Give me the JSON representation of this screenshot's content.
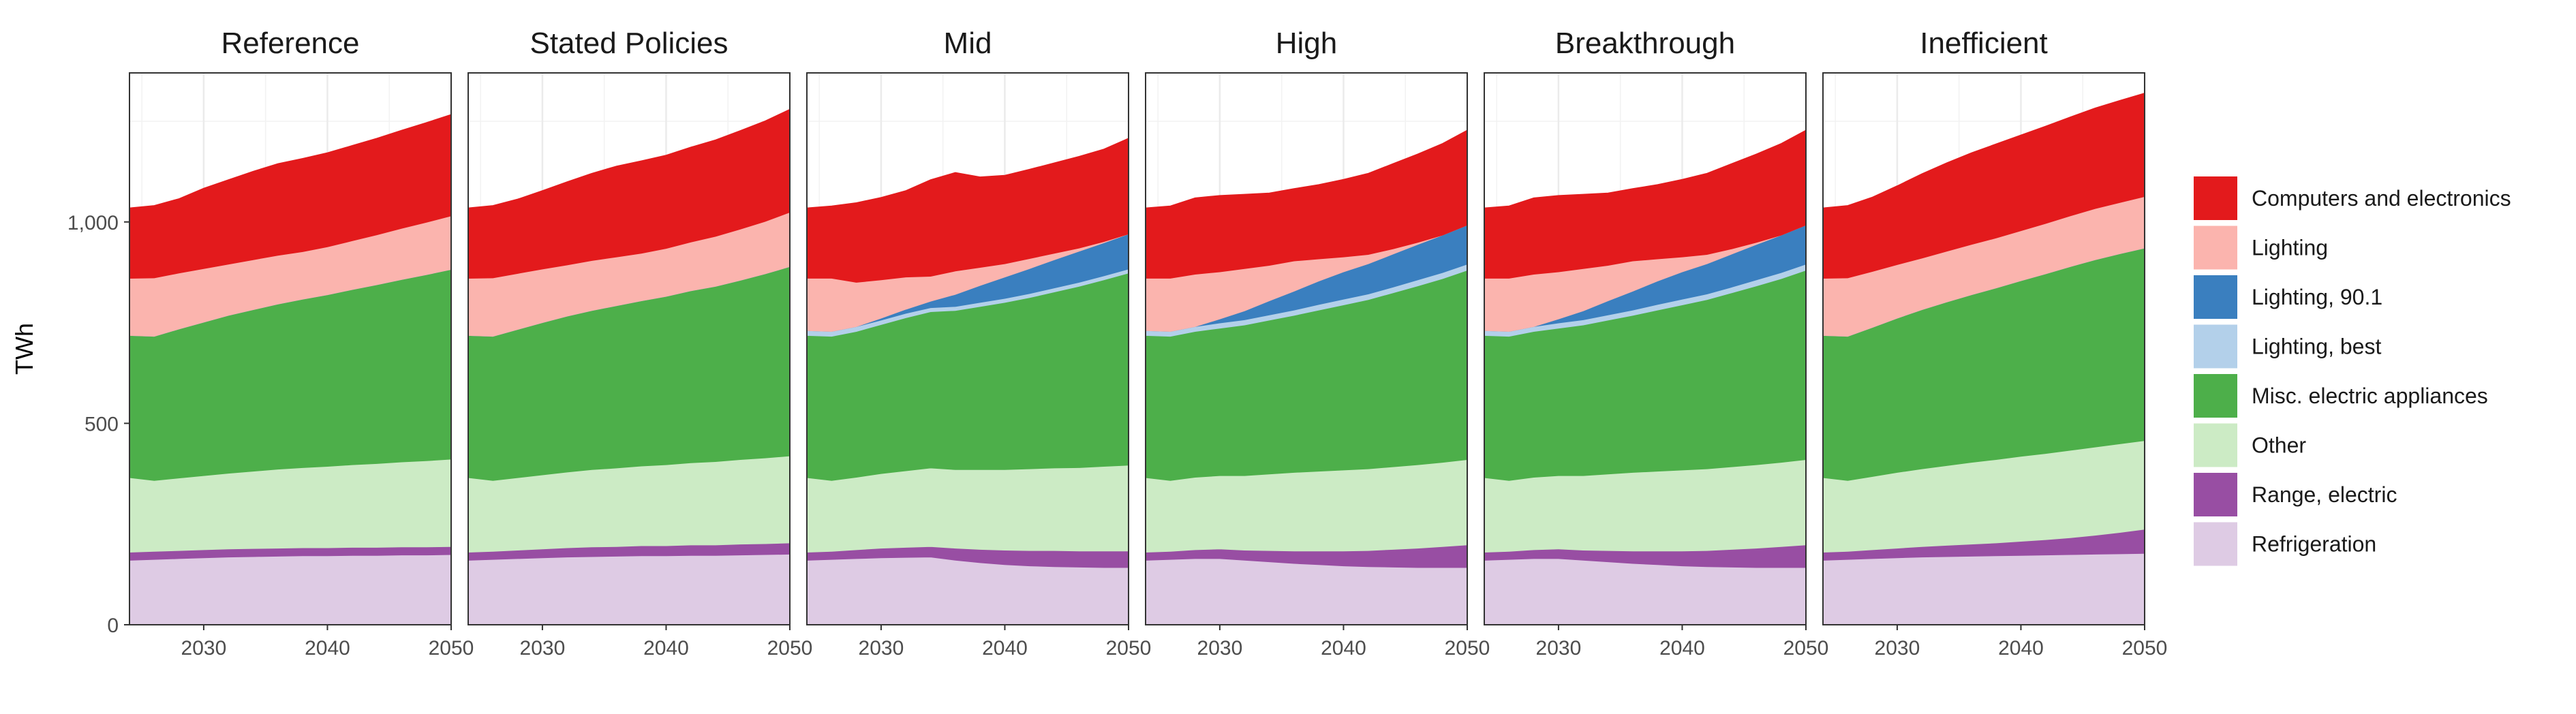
{
  "chart_data": {
    "type": "area",
    "stacked": true,
    "ylabel": "TWh",
    "xlabel": "",
    "x": [
      2024,
      2026,
      2028,
      2030,
      2032,
      2034,
      2036,
      2038,
      2040,
      2042,
      2044,
      2046,
      2048,
      2050
    ],
    "xticks": [
      "2030",
      "2040",
      "2050"
    ],
    "yticks": [
      "0",
      "500",
      "1,000"
    ],
    "ylim": [
      0,
      1370
    ],
    "grid": true,
    "legend_position": "right",
    "legend": [
      {
        "name": "Computers and electronics",
        "color": "#E31A1C"
      },
      {
        "name": "Lighting",
        "color": "#FBB4AE"
      },
      {
        "name": "Lighting, 90.1",
        "color": "#3A7FBF"
      },
      {
        "name": "Lighting, best",
        "color": "#B3D0EA"
      },
      {
        "name": "Misc. electric appliances",
        "color": "#4DAF4A"
      },
      {
        "name": "Other",
        "color": "#CCEBC5"
      },
      {
        "name": "Range, electric",
        "color": "#984EA3"
      },
      {
        "name": "Refrigeration",
        "color": "#DECBE4"
      }
    ],
    "panels": [
      {
        "title": "Reference",
        "series": {
          "Refrigeration": [
            160,
            162,
            164,
            166,
            168,
            169,
            170,
            171,
            171,
            172,
            172,
            173,
            173,
            174
          ],
          "Range, electric": [
            20,
            20,
            20,
            20,
            20,
            20,
            20,
            20,
            20,
            20,
            20,
            20,
            20,
            20
          ],
          "Other": [
            185,
            176,
            180,
            184,
            188,
            192,
            196,
            199,
            202,
            205,
            208,
            211,
            214,
            217
          ],
          "Misc. electric appliances": [
            353,
            358,
            370,
            381,
            392,
            401,
            410,
            418,
            426,
            435,
            444,
            453,
            462,
            471
          ],
          "Lighting, best": [
            0,
            0,
            0,
            0,
            0,
            0,
            0,
            0,
            0,
            0,
            0,
            0,
            0,
            0
          ],
          "Lighting, 90.1": [
            0,
            0,
            0,
            0,
            0,
            0,
            0,
            0,
            0,
            0,
            0,
            0,
            0,
            0
          ],
          "Lighting": [
            142,
            145,
            139,
            133,
            127,
            124,
            121,
            118,
            119,
            121,
            124,
            127,
            130,
            133
          ],
          "Computers and electronics": [
            175,
            180,
            185,
            200,
            210,
            220,
            228,
            232,
            234,
            237,
            240,
            244,
            248,
            252
          ]
        }
      },
      {
        "title": "Stated Policies",
        "series": {
          "Refrigeration": [
            160,
            162,
            164,
            166,
            168,
            169,
            170,
            171,
            171,
            172,
            172,
            173,
            174,
            175
          ],
          "Range, electric": [
            20,
            20,
            21,
            22,
            23,
            24,
            24,
            25,
            25,
            26,
            26,
            27,
            27,
            28
          ],
          "Other": [
            185,
            176,
            180,
            184,
            188,
            192,
            195,
            198,
            201,
            204,
            207,
            210,
            213,
            216
          ],
          "Misc. electric appliances": [
            353,
            358,
            368,
            378,
            387,
            395,
            403,
            410,
            418,
            427,
            435,
            445,
            457,
            470
          ],
          "Lighting, best": [
            0,
            0,
            0,
            0,
            0,
            0,
            0,
            0,
            0,
            0,
            0,
            0,
            0,
            0
          ],
          "Lighting, 90.1": [
            0,
            0,
            0,
            0,
            0,
            0,
            0,
            0,
            0,
            0,
            0,
            0,
            0,
            0
          ],
          "Lighting": [
            142,
            145,
            139,
            133,
            127,
            124,
            121,
            118,
            119,
            121,
            124,
            127,
            130,
            135
          ],
          "Computers and electronics": [
            175,
            180,
            185,
            195,
            207,
            217,
            226,
            230,
            232,
            236,
            240,
            245,
            250,
            256
          ]
        }
      },
      {
        "title": "Mid",
        "series": {
          "Refrigeration": [
            160,
            162,
            164,
            166,
            167,
            168,
            160,
            154,
            149,
            146,
            144,
            143,
            142,
            142
          ],
          "Range, electric": [
            20,
            20,
            22,
            24,
            25,
            26,
            30,
            33,
            36,
            38,
            40,
            40,
            41,
            41
          ],
          "Other": [
            185,
            176,
            180,
            185,
            190,
            195,
            195,
            198,
            200,
            203,
            205,
            207,
            210,
            213
          ],
          "Misc. electric appliances": [
            353,
            358,
            362,
            370,
            380,
            388,
            395,
            405,
            415,
            425,
            437,
            450,
            463,
            477
          ],
          "Lighting, best": [
            12,
            12,
            12,
            11,
            11,
            10,
            10,
            10,
            10,
            10,
            10,
            10,
            10,
            10
          ],
          "Lighting, 90.1": [
            0,
            0,
            0,
            5,
            10,
            16,
            30,
            42,
            53,
            62,
            70,
            77,
            82,
            87
          ],
          "Lighting": [
            130,
            132,
            110,
            95,
            80,
            62,
            58,
            45,
            33,
            25,
            16,
            8,
            3,
            0
          ],
          "Computers and electronics": [
            175,
            180,
            198,
            205,
            215,
            240,
            245,
            225,
            220,
            222,
            225,
            228,
            230,
            238
          ]
        }
      },
      {
        "title": "High",
        "series": {
          "Refrigeration": [
            160,
            162,
            164,
            164,
            160,
            156,
            152,
            149,
            146,
            144,
            143,
            142,
            142,
            142
          ],
          "Range, electric": [
            20,
            20,
            22,
            24,
            25,
            28,
            31,
            34,
            37,
            40,
            44,
            48,
            52,
            56
          ],
          "Other": [
            185,
            176,
            180,
            182,
            185,
            190,
            195,
            198,
            201,
            203,
            205,
            207,
            209,
            212
          ],
          "Misc. electric appliances": [
            353,
            358,
            362,
            366,
            374,
            382,
            390,
            400,
            410,
            420,
            432,
            444,
            456,
            470
          ],
          "Lighting, best": [
            12,
            12,
            12,
            13,
            13,
            13,
            13,
            14,
            14,
            14,
            14,
            15,
            15,
            15
          ],
          "Lighting, 90.1": [
            0,
            0,
            0,
            10,
            22,
            35,
            47,
            58,
            68,
            75,
            82,
            88,
            93,
            97
          ],
          "Lighting": [
            130,
            132,
            130,
            117,
            105,
            88,
            75,
            55,
            37,
            23,
            13,
            5,
            0,
            0
          ],
          "Computers and electronics": [
            175,
            180,
            190,
            190,
            185,
            180,
            180,
            185,
            193,
            202,
            212,
            220,
            228,
            236
          ]
        }
      },
      {
        "title": "Breakthrough",
        "series": {
          "Refrigeration": [
            160,
            162,
            164,
            164,
            160,
            156,
            152,
            149,
            146,
            144,
            143,
            142,
            142,
            142
          ],
          "Range, electric": [
            20,
            20,
            22,
            24,
            25,
            28,
            31,
            34,
            37,
            40,
            44,
            48,
            52,
            56
          ],
          "Other": [
            185,
            176,
            180,
            182,
            185,
            190,
            195,
            198,
            201,
            203,
            205,
            207,
            209,
            212
          ],
          "Misc. electric appliances": [
            353,
            358,
            362,
            366,
            374,
            382,
            390,
            400,
            410,
            420,
            432,
            444,
            456,
            470
          ],
          "Lighting, best": [
            12,
            12,
            12,
            13,
            13,
            13,
            13,
            14,
            14,
            14,
            14,
            15,
            15,
            15
          ],
          "Lighting, 90.1": [
            0,
            0,
            0,
            10,
            22,
            35,
            47,
            58,
            68,
            75,
            82,
            88,
            93,
            97
          ],
          "Lighting": [
            130,
            132,
            130,
            117,
            105,
            88,
            75,
            55,
            37,
            23,
            13,
            5,
            0,
            0
          ],
          "Computers and electronics": [
            175,
            180,
            190,
            190,
            185,
            180,
            180,
            185,
            193,
            202,
            212,
            220,
            228,
            236
          ]
        }
      },
      {
        "title": "Inefficient",
        "series": {
          "Refrigeration": [
            160,
            162,
            164,
            166,
            168,
            169,
            170,
            171,
            172,
            173,
            174,
            175,
            176,
            177
          ],
          "Range, electric": [
            20,
            20,
            22,
            24,
            26,
            28,
            30,
            32,
            35,
            38,
            42,
            47,
            53,
            60
          ],
          "Other": [
            185,
            176,
            182,
            188,
            193,
            198,
            203,
            207,
            211,
            214,
            217,
            219,
            220,
            220
          ],
          "Misc. electric appliances": [
            353,
            358,
            370,
            383,
            395,
            406,
            416,
            426,
            436,
            446,
            456,
            465,
            472,
            478
          ],
          "Lighting, best": [
            0,
            0,
            0,
            0,
            0,
            0,
            0,
            0,
            0,
            0,
            0,
            0,
            0,
            0
          ],
          "Lighting, 90.1": [
            0,
            0,
            0,
            0,
            0,
            0,
            0,
            0,
            0,
            0,
            0,
            0,
            0,
            0
          ],
          "Lighting": [
            142,
            145,
            139,
            133,
            128,
            126,
            125,
            124,
            124,
            125,
            126,
            127,
            127,
            128
          ],
          "Computers and electronics": [
            175,
            180,
            185,
            196,
            210,
            220,
            228,
            234,
            238,
            242,
            246,
            250,
            254,
            257
          ]
        }
      }
    ]
  }
}
